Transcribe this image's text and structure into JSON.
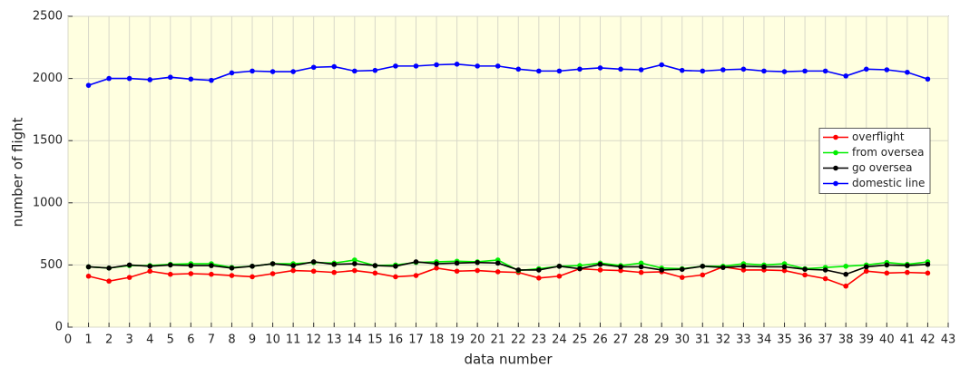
{
  "chart_data": {
    "type": "line",
    "xlabel": "data number",
    "ylabel": "number of flight",
    "x": [
      1,
      2,
      3,
      4,
      5,
      6,
      7,
      8,
      9,
      10,
      11,
      12,
      13,
      14,
      15,
      16,
      17,
      18,
      19,
      20,
      21,
      22,
      23,
      24,
      25,
      26,
      27,
      28,
      29,
      30,
      31,
      32,
      33,
      34,
      35,
      36,
      37,
      38,
      39,
      40,
      41,
      42
    ],
    "series": [
      {
        "name": "overflight",
        "color": "#ff0000",
        "values": [
          410,
          370,
          400,
          450,
          425,
          430,
          425,
          415,
          405,
          430,
          455,
          450,
          440,
          455,
          435,
          405,
          415,
          475,
          450,
          455,
          445,
          440,
          395,
          410,
          470,
          460,
          455,
          440,
          445,
          400,
          420,
          485,
          460,
          460,
          455,
          420,
          390,
          330,
          450,
          435,
          440,
          435
        ]
      },
      {
        "name": "from oversea",
        "color": "#00ee00",
        "values": [
          485,
          475,
          495,
          495,
          505,
          510,
          510,
          480,
          490,
          510,
          510,
          520,
          515,
          540,
          495,
          500,
          520,
          525,
          530,
          525,
          540,
          455,
          470,
          490,
          495,
          515,
          495,
          515,
          475,
          470,
          490,
          490,
          510,
          500,
          510,
          470,
          480,
          490,
          500,
          520,
          505,
          525
        ]
      },
      {
        "name": "go oversea",
        "color": "#000000",
        "values": [
          485,
          475,
          500,
          490,
          500,
          495,
          495,
          475,
          490,
          510,
          495,
          525,
          505,
          510,
          495,
          490,
          525,
          510,
          515,
          520,
          515,
          460,
          460,
          490,
          470,
          505,
          485,
          485,
          460,
          465,
          490,
          480,
          490,
          485,
          485,
          465,
          460,
          425,
          485,
          500,
          495,
          505
        ]
      },
      {
        "name": "domestic line",
        "color": "#0000ff",
        "values": [
          1945,
          2000,
          2000,
          1990,
          2010,
          1995,
          1985,
          2045,
          2060,
          2055,
          2055,
          2090,
          2095,
          2060,
          2065,
          2100,
          2100,
          2110,
          2115,
          2100,
          2100,
          2075,
          2060,
          2060,
          2075,
          2085,
          2075,
          2070,
          2110,
          2065,
          2060,
          2070,
          2075,
          2060,
          2055,
          2060,
          2060,
          2020,
          2075,
          2070,
          2050,
          1995
        ]
      }
    ],
    "xlim": [
      0,
      43
    ],
    "xticks": [
      0,
      1,
      2,
      3,
      4,
      5,
      6,
      7,
      8,
      9,
      10,
      11,
      12,
      13,
      14,
      15,
      16,
      17,
      18,
      19,
      20,
      21,
      22,
      23,
      24,
      25,
      26,
      27,
      28,
      29,
      30,
      31,
      32,
      33,
      34,
      35,
      36,
      37,
      38,
      39,
      40,
      41,
      42,
      43
    ],
    "ylim": [
      0,
      2500
    ],
    "yticks": [
      0,
      500,
      1000,
      1500,
      2000,
      2500
    ],
    "grid": true,
    "background": "#ffffe0",
    "legend": "right"
  }
}
